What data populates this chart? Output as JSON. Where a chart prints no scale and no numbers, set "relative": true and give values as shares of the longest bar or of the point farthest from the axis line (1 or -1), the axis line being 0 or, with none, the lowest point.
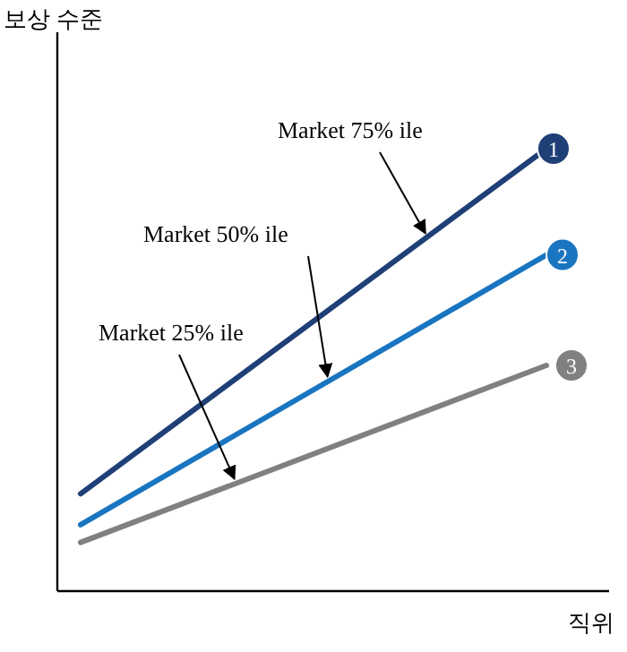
{
  "chart_data": {
    "type": "line",
    "relative": true,
    "ylabel": "보상 수준",
    "xlabel": "직위",
    "categories": [
      null,
      null
    ],
    "series": [
      {
        "name": "1",
        "color": "#1f3f77",
        "values": [
          0.22,
          1
        ]
      },
      {
        "name": "2",
        "color": "#1a75c0",
        "values": [
          0.15,
          0.76
        ]
      },
      {
        "name": "3",
        "color": "#808080",
        "values": [
          0.11,
          0.51
        ]
      }
    ],
    "annotations": [
      "Market 75% ile",
      "Market 50% ile",
      "Market 25% ile"
    ],
    "grid": false,
    "legend": false,
    "line_style": "solid"
  }
}
